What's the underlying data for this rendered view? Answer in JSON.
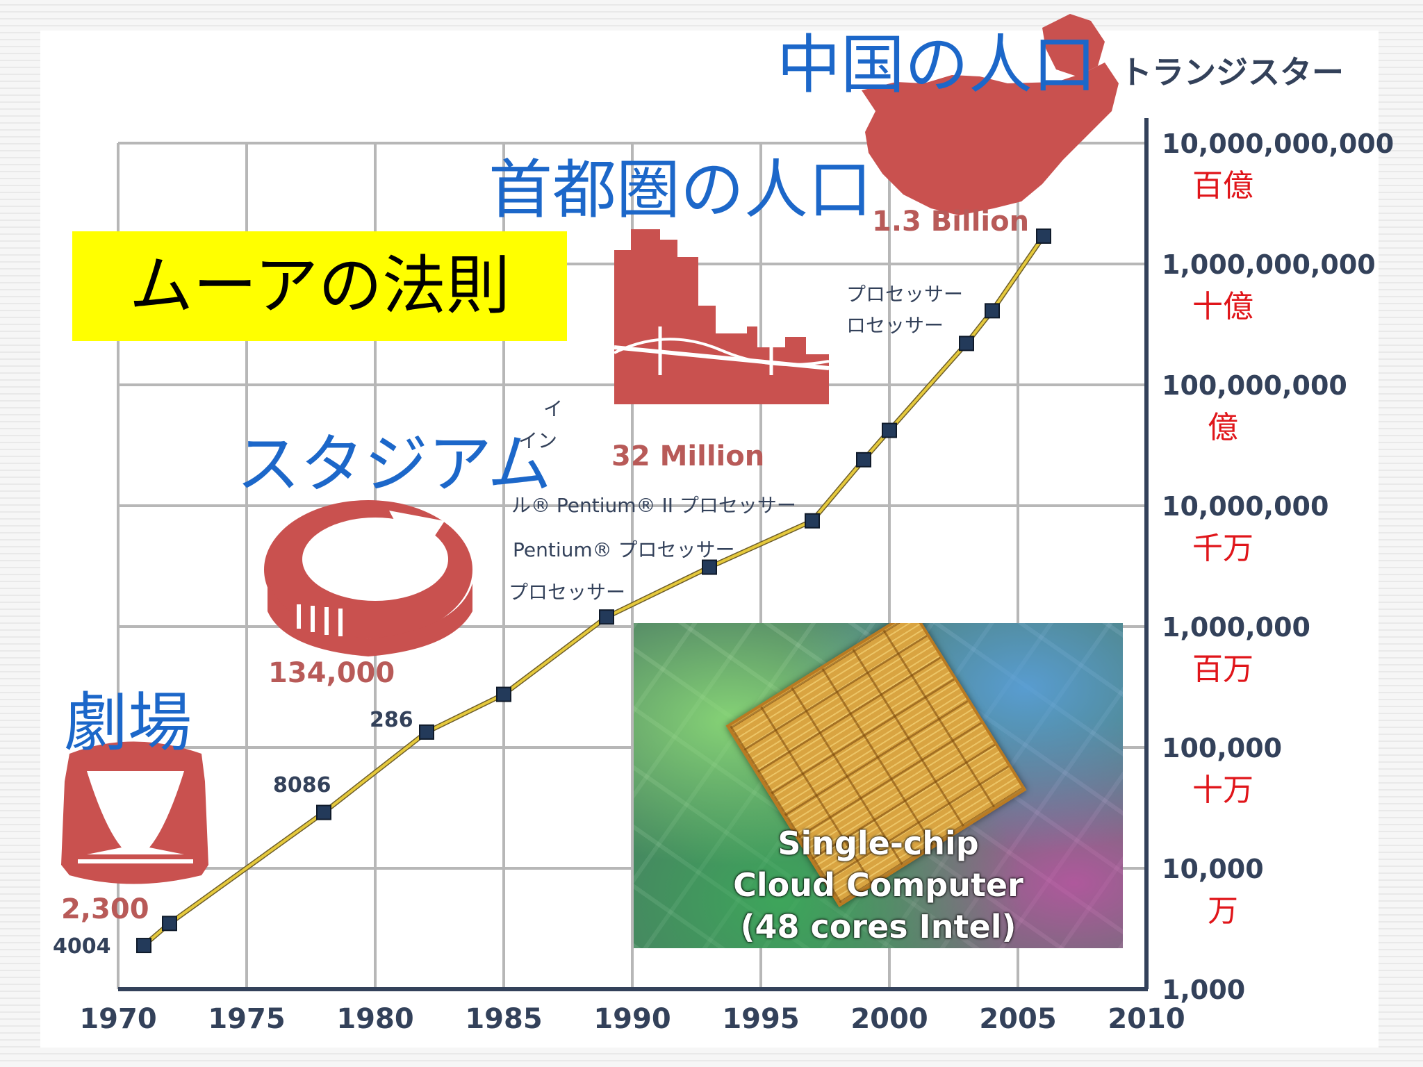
{
  "slide": {
    "title": "ムーアの法則"
  },
  "labels": {
    "theater_jp": "劇場",
    "stadium_jp": "スタジアム",
    "metro_jp": "首都圏の人口",
    "china_jp": "中国の人口"
  },
  "population_counts": {
    "theater": "2,300",
    "stadium": "134,000",
    "metro": "32 Million",
    "china": "1.3 Billion"
  },
  "processor_labels": {
    "p4004": "4004",
    "p8086": "8086",
    "p286": "286",
    "pentium": "Pentium® プロセッサー",
    "pentium2": "ル® Pentium® II プロセッサー",
    "generic": "プロセッサー",
    "partial_a": "プロセッサー",
    "partial_b": "ロセッサー",
    "partial_c": "イ",
    "partial_d": "イン"
  },
  "inset": {
    "line1": "Single-chip",
    "line2": "Cloud Computer",
    "line3": "(48 cores Intel)"
  },
  "colors": {
    "grid": "#b7b7b7",
    "trend_line": "#e5c93c",
    "point": "#233a5a",
    "japanese_red": "#e0151a",
    "heading_blue": "#1c67c9",
    "icon_red": "#c9514f",
    "highlight": "#ffff00"
  },
  "chart_data": {
    "type": "line",
    "y_scale": "log",
    "xlim": [
      1970,
      2010
    ],
    "ylim": [
      1000,
      10000000000
    ],
    "y_title": "トランジスター",
    "x_ticks": [
      1970,
      1975,
      1980,
      1985,
      1990,
      1995,
      2000,
      2005,
      2010
    ],
    "y_ticks": [
      {
        "value": 1000,
        "label": "1,000",
        "jp": ""
      },
      {
        "value": 10000,
        "label": "10,000",
        "jp": "万"
      },
      {
        "value": 100000,
        "label": "100,000",
        "jp": "十万"
      },
      {
        "value": 1000000,
        "label": "1,000,000",
        "jp": "百万"
      },
      {
        "value": 10000000,
        "label": "10,000,000",
        "jp": "千万"
      },
      {
        "value": 100000000,
        "label": "100,000,000",
        "jp": "億"
      },
      {
        "value": 1000000000,
        "label": "1,000,000,000",
        "jp": "十億"
      },
      {
        "value": 10000000000,
        "label": "10,000,000,000",
        "jp": "百億"
      }
    ],
    "series": [
      {
        "points": [
          {
            "x": 1971,
            "y": 2300
          },
          {
            "x": 1972,
            "y": 3500
          },
          {
            "x": 1978,
            "y": 29000
          },
          {
            "x": 1982,
            "y": 134000
          },
          {
            "x": 1985,
            "y": 275000
          },
          {
            "x": 1989,
            "y": 1200000
          },
          {
            "x": 1993,
            "y": 3100000
          },
          {
            "x": 1997,
            "y": 7500000
          },
          {
            "x": 1999,
            "y": 24000000
          },
          {
            "x": 2000,
            "y": 42000000
          },
          {
            "x": 2003,
            "y": 220000000
          },
          {
            "x": 2004,
            "y": 410000000
          },
          {
            "x": 2006,
            "y": 1700000000
          }
        ]
      }
    ]
  }
}
